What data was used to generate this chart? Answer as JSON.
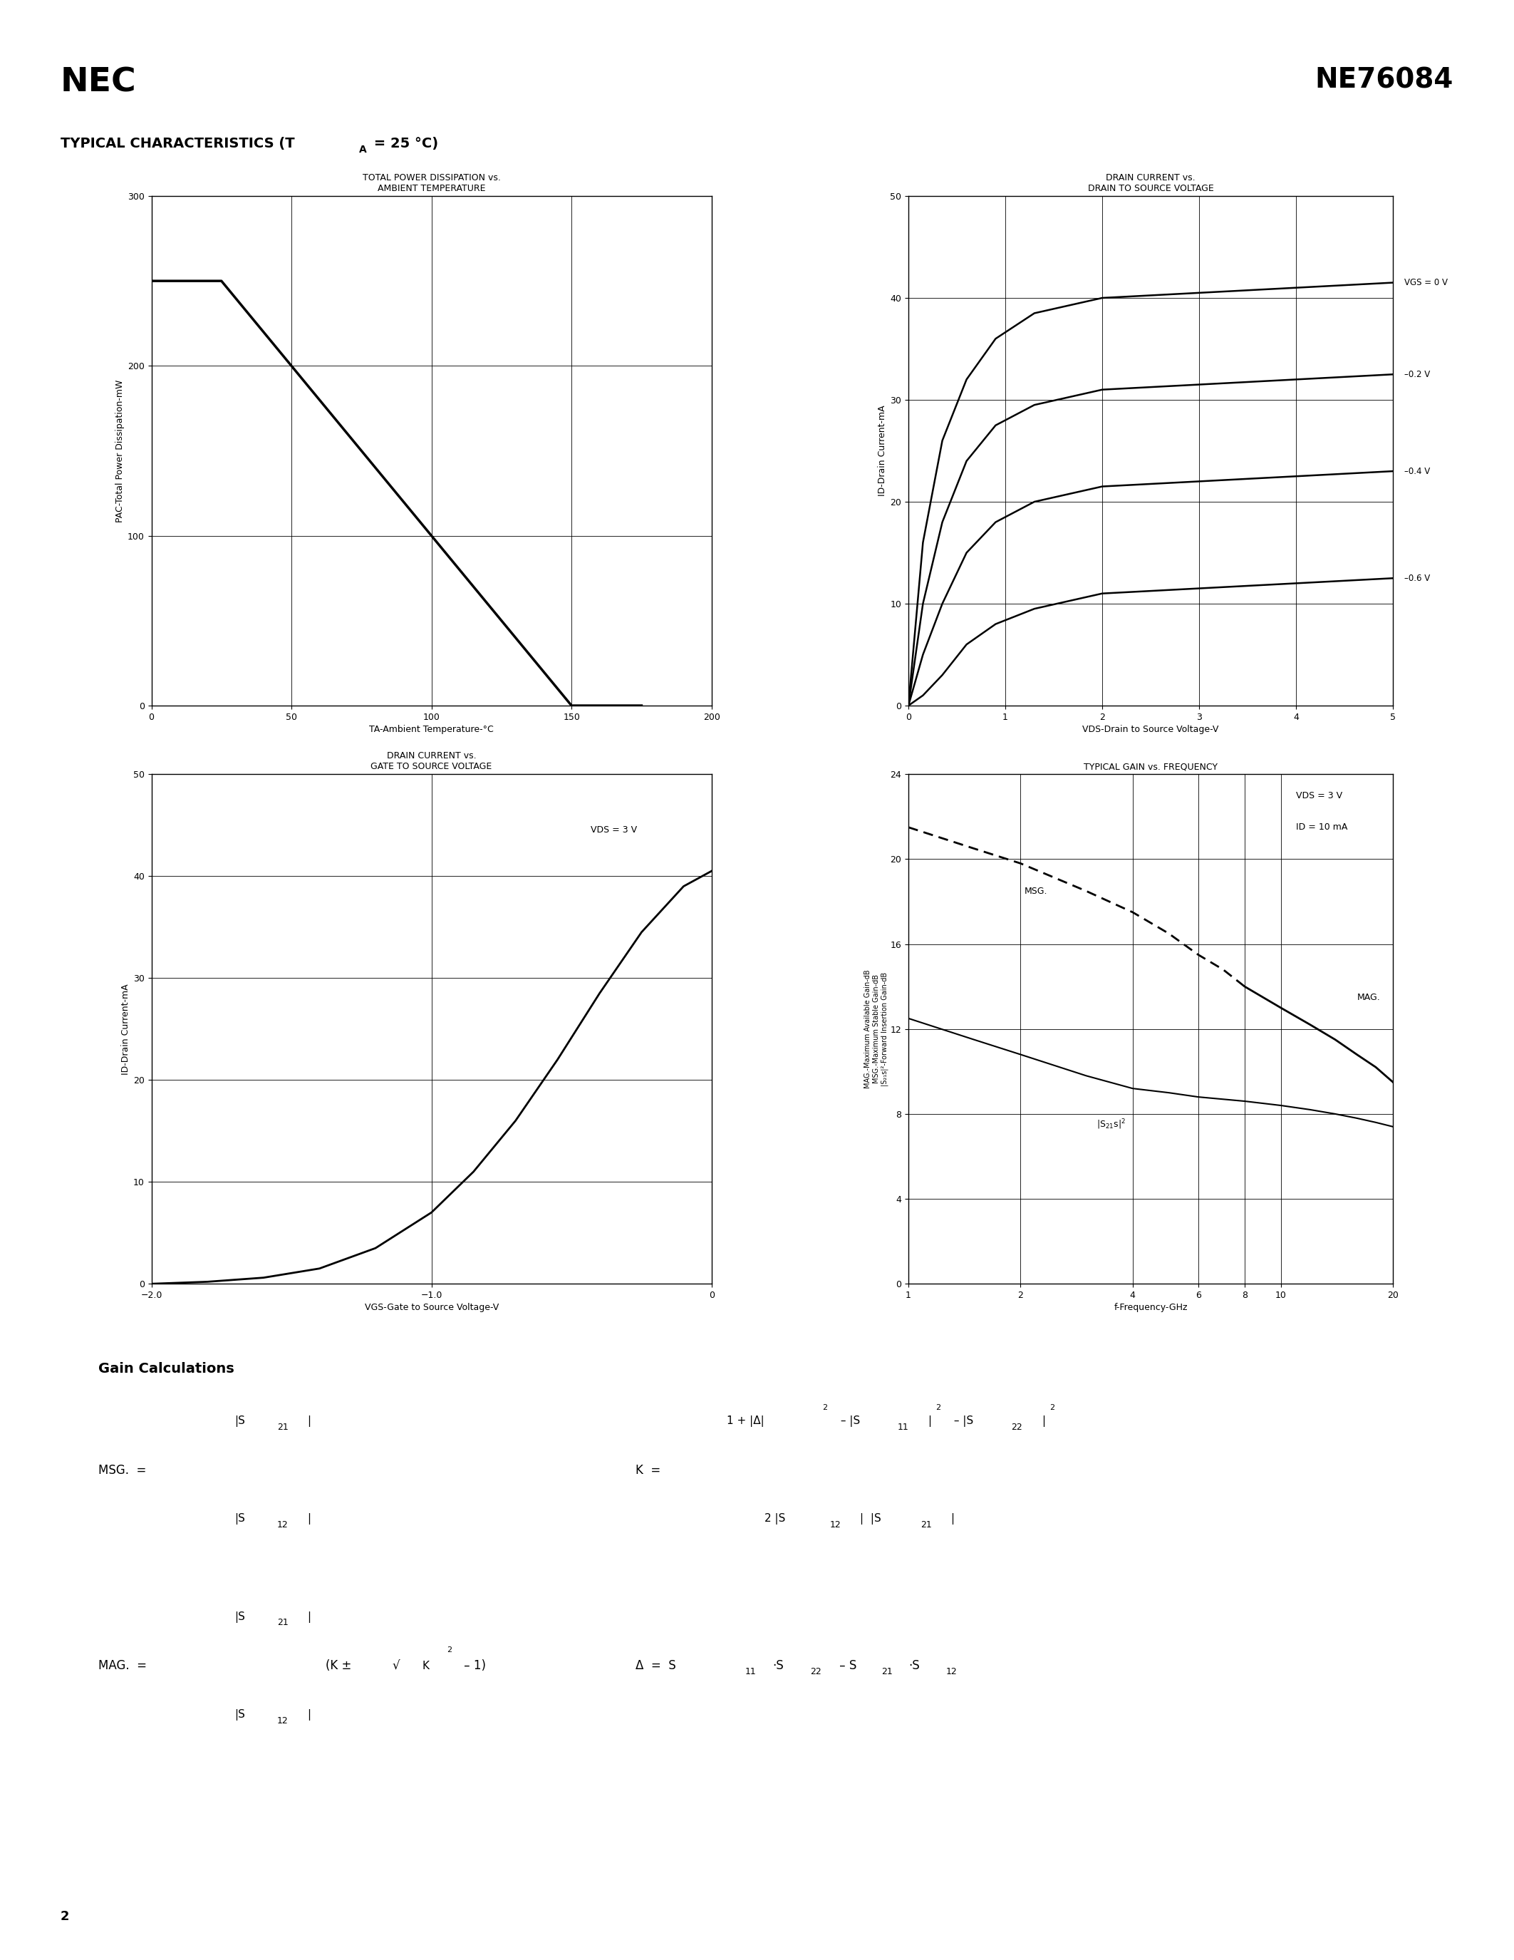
{
  "page_title_left": "NEC",
  "page_title_right": "NE76084",
  "section_title": "TYPICAL CHARACTERISTICS (TA = 25 °C)",
  "page_number": "2",
  "chart1": {
    "title_line1": "TOTAL POWER DISSIPATION vs.",
    "title_line2": "AMBIENT TEMPERATURE",
    "xlabel": "TA-Ambient Temperature-°C",
    "ylabel": "PAC-Total Power Dissipation-mW",
    "xlim": [
      0,
      200
    ],
    "ylim": [
      0,
      300
    ],
    "xticks": [
      0,
      50,
      100,
      150,
      200
    ],
    "yticks": [
      0,
      100,
      200,
      300
    ],
    "curve_x": [
      0,
      25,
      150,
      175
    ],
    "curve_y": [
      250,
      250,
      0,
      0
    ]
  },
  "chart2": {
    "title_line1": "DRAIN CURRENT vs.",
    "title_line2": "DRAIN TO SOURCE VOLTAGE",
    "xlabel": "VDS-Drain to Source Voltage-V",
    "ylabel": "ID-Drain Current-mA",
    "xlim": [
      0,
      5
    ],
    "ylim": [
      0,
      50
    ],
    "xticks": [
      0,
      1,
      2,
      3,
      4,
      5
    ],
    "yticks": [
      0,
      10,
      20,
      30,
      40,
      50
    ],
    "curves": [
      {
        "vgs_label": "VGS = 0 V",
        "x": [
          0,
          0.15,
          0.35,
          0.6,
          0.9,
          1.3,
          2.0,
          3.0,
          4.0,
          5.0
        ],
        "y": [
          0,
          16,
          26,
          32,
          36,
          38.5,
          40,
          40.5,
          41,
          41.5
        ]
      },
      {
        "vgs_label": "–0.2 V",
        "x": [
          0,
          0.15,
          0.35,
          0.6,
          0.9,
          1.3,
          2.0,
          3.0,
          4.0,
          5.0
        ],
        "y": [
          0,
          10,
          18,
          24,
          27.5,
          29.5,
          31,
          31.5,
          32,
          32.5
        ]
      },
      {
        "vgs_label": "–0.4 V",
        "x": [
          0,
          0.15,
          0.35,
          0.6,
          0.9,
          1.3,
          2.0,
          3.0,
          4.0,
          5.0
        ],
        "y": [
          0,
          5,
          10,
          15,
          18,
          20,
          21.5,
          22,
          22.5,
          23
        ]
      },
      {
        "vgs_label": "–0.6 V",
        "x": [
          0,
          0.15,
          0.35,
          0.6,
          0.9,
          1.3,
          2.0,
          3.0,
          4.0,
          5.0
        ],
        "y": [
          0,
          1,
          3,
          6,
          8,
          9.5,
          11,
          11.5,
          12,
          12.5
        ]
      }
    ]
  },
  "chart3": {
    "title_line1": "DRAIN CURRENT vs.",
    "title_line2": "GATE TO SOURCE VOLTAGE",
    "xlabel": "VGS-Gate to Source Voltage-V",
    "ylabel": "ID-Drain Current-mA",
    "label_vds": "VDS = 3 V",
    "xlim": [
      -2.0,
      0
    ],
    "ylim": [
      0,
      50
    ],
    "xticks": [
      -2.0,
      -1.0,
      0
    ],
    "yticks": [
      0,
      10,
      20,
      30,
      40,
      50
    ],
    "curve_x": [
      -2.0,
      -1.8,
      -1.6,
      -1.4,
      -1.2,
      -1.0,
      -0.85,
      -0.7,
      -0.55,
      -0.4,
      -0.25,
      -0.1,
      0.0
    ],
    "curve_y": [
      0,
      0.2,
      0.6,
      1.5,
      3.5,
      7.0,
      11.0,
      16.0,
      22.0,
      28.5,
      34.5,
      39.0,
      40.5
    ]
  },
  "chart4": {
    "title": "TYPICAL GAIN vs. FREQUENCY",
    "xlabel": "f-Frequency-GHz",
    "label_vds": "VDS = 3 V",
    "label_id": "ID = 10 mA",
    "xlim": [
      1,
      20
    ],
    "ylim": [
      0,
      24
    ],
    "yticks": [
      0,
      4,
      8,
      12,
      16,
      20,
      24
    ],
    "xticks": [
      1,
      2,
      4,
      6,
      8,
      10,
      20
    ],
    "msg_x": [
      1.0,
      1.5,
      2.0,
      3.0,
      4.0,
      5.0,
      6.0,
      7.0,
      8.0
    ],
    "msg_y": [
      21.5,
      20.5,
      19.8,
      18.5,
      17.5,
      16.5,
      15.5,
      14.8,
      14.0
    ],
    "mag_x": [
      8.0,
      10.0,
      12.0,
      14.0,
      16.0,
      18.0,
      20.0
    ],
    "mag_y": [
      14.0,
      13.0,
      12.2,
      11.5,
      10.8,
      10.2,
      9.5
    ],
    "s21s_x": [
      1.0,
      1.5,
      2.0,
      3.0,
      4.0,
      5.0,
      6.0,
      8.0,
      10.0,
      12.0,
      14.0,
      16.0,
      18.0,
      20.0
    ],
    "s21s_y": [
      12.5,
      11.5,
      10.8,
      9.8,
      9.2,
      9.0,
      8.8,
      8.6,
      8.4,
      8.2,
      8.0,
      7.8,
      7.6,
      7.4
    ]
  }
}
